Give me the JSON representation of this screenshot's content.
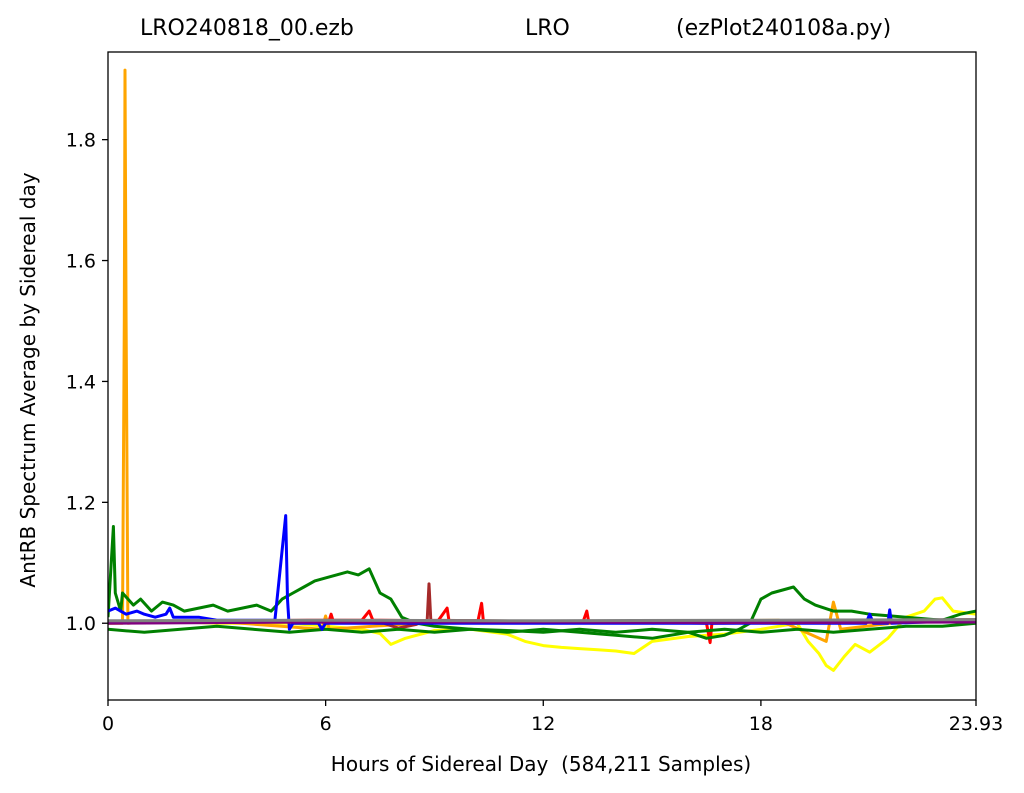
{
  "title": {
    "file": "LRO240818_00.ezb",
    "station": "LRO",
    "program": "(ezPlot240108a.py)"
  },
  "chart_data": {
    "type": "line",
    "title": "LRO240818_00.ezb LRO (ezPlot240108a.py)",
    "xlabel": "Hours of Sidereal Day  (584,211 Samples)",
    "ylabel": "AntRB Spectrum Average by Sidereal day",
    "xlim": [
      0,
      23.93
    ],
    "ylim": [
      0.873,
      1.945
    ],
    "xticks": [
      0,
      6,
      12,
      18,
      23.93
    ],
    "xtick_labels": [
      "0",
      "6",
      "12",
      "18",
      "23.93"
    ],
    "yticks": [
      1.0,
      1.2,
      1.4,
      1.6,
      1.8
    ],
    "ytick_labels": [
      "1.0",
      "1.2",
      "1.4",
      "1.6",
      "1.8"
    ],
    "grid": false,
    "series": [
      {
        "color": "#ffff00",
        "x": [
          0,
          1,
          2,
          3,
          4,
          5,
          6,
          7,
          7.5,
          7.8,
          8.2,
          9,
          10,
          11,
          11.5,
          12,
          12.5,
          13,
          13.5,
          14,
          14.5,
          15,
          16,
          17,
          18,
          19,
          19.3,
          19.6,
          19.8,
          20,
          20.3,
          20.6,
          21,
          21.5,
          22,
          22.5,
          22.8,
          23,
          23.3,
          23.93
        ],
        "y": [
          1.0,
          1.003,
          1.002,
          1.0,
          1.0,
          1.0,
          0.995,
          0.99,
          0.983,
          0.965,
          0.975,
          0.988,
          0.99,
          0.982,
          0.97,
          0.963,
          0.96,
          0.958,
          0.956,
          0.954,
          0.95,
          0.97,
          0.978,
          0.982,
          0.99,
          1.0,
          0.97,
          0.95,
          0.93,
          0.922,
          0.945,
          0.965,
          0.952,
          0.975,
          1.01,
          1.02,
          1.04,
          1.042,
          1.02,
          1.015
        ]
      },
      {
        "color": "#ffa500",
        "x": [
          0,
          0.4,
          0.45,
          0.47,
          0.5,
          0.55,
          1,
          3,
          5.9,
          6,
          6.1,
          9,
          12,
          15,
          17,
          18.5,
          19.8,
          20,
          20.2,
          22,
          23.93
        ],
        "y": [
          1.0,
          1.0,
          1.5,
          1.915,
          1.5,
          1.0,
          1.002,
          1.003,
          0.99,
          1.012,
          0.99,
          1.002,
          1.002,
          1.003,
          1.004,
          1.005,
          0.97,
          1.035,
          0.99,
          1.003,
          1.005
        ]
      },
      {
        "color": "#ff0000",
        "x": [
          0,
          2,
          5.5,
          6.1,
          6.15,
          6.2,
          7,
          7.2,
          7.3,
          9.1,
          9.35,
          9.4,
          10.2,
          10.3,
          10.35,
          13.1,
          13.2,
          13.25,
          16.5,
          16.6,
          16.65,
          20,
          23.93
        ],
        "y": [
          1.002,
          1.003,
          1.005,
          1.005,
          1.015,
          1.005,
          1.005,
          1.02,
          1.005,
          1.004,
          1.025,
          1.004,
          1.004,
          1.033,
          1.003,
          1.003,
          1.02,
          1.003,
          1.0,
          0.968,
          1.0,
          1.002,
          1.003
        ]
      },
      {
        "color": "#a52a2a",
        "x": [
          0,
          3,
          7.6,
          8,
          8.5,
          8.8,
          8.85,
          8.9,
          12,
          18,
          23.93
        ],
        "y": [
          1.003,
          1.004,
          1.0,
          0.992,
          0.998,
          1.005,
          1.065,
          1.005,
          1.003,
          1.004,
          1.006
        ]
      },
      {
        "color": "#008000",
        "x": [
          0,
          0.15,
          0.2,
          0.35,
          0.4,
          0.7,
          0.9,
          1.2,
          1.5,
          1.8,
          2.1,
          2.5,
          2.9,
          3.3,
          3.7,
          4.1,
          4.5,
          4.8,
          5.1,
          5.4,
          5.7,
          6.0,
          6.3,
          6.6,
          6.9,
          7.2,
          7.5,
          7.8,
          8.1,
          8.5,
          9,
          10,
          11,
          12,
          13,
          14,
          15,
          16,
          16.5,
          17,
          17.4,
          17.7,
          18,
          18.3,
          18.6,
          18.9,
          19.2,
          19.5,
          20,
          20.5,
          21,
          22,
          23,
          23.5,
          23.93
        ],
        "y": [
          1.01,
          1.16,
          1.05,
          1.02,
          1.05,
          1.03,
          1.04,
          1.02,
          1.035,
          1.03,
          1.02,
          1.025,
          1.03,
          1.02,
          1.025,
          1.03,
          1.02,
          1.04,
          1.05,
          1.06,
          1.07,
          1.075,
          1.08,
          1.085,
          1.08,
          1.09,
          1.05,
          1.04,
          1.01,
          1.0,
          0.995,
          0.99,
          0.985,
          0.99,
          0.985,
          0.98,
          0.975,
          0.985,
          0.975,
          0.98,
          0.99,
          1.0,
          1.04,
          1.05,
          1.055,
          1.06,
          1.04,
          1.03,
          1.02,
          1.02,
          1.015,
          1.01,
          1.005,
          1.015,
          1.02
        ]
      },
      {
        "color": "#008000",
        "x": [
          0,
          1,
          2,
          3,
          4,
          5,
          6,
          7,
          8,
          9,
          10,
          11,
          12,
          13,
          14,
          15,
          16,
          17,
          18,
          19,
          20,
          21,
          22,
          23,
          23.93
        ],
        "y": [
          0.99,
          0.985,
          0.99,
          0.995,
          0.99,
          0.985,
          0.99,
          0.985,
          0.99,
          0.985,
          0.99,
          0.988,
          0.985,
          0.99,
          0.985,
          0.99,
          0.985,
          0.99,
          0.985,
          0.99,
          0.985,
          0.99,
          0.995,
          0.995,
          1.0
        ]
      },
      {
        "color": "#0000ff",
        "x": [
          0,
          0.2,
          0.5,
          0.8,
          1.0,
          1.3,
          1.6,
          1.7,
          1.8,
          2.5,
          3.0,
          4.6,
          4.9,
          4.95,
          5.0,
          5.1,
          5.8,
          5.9,
          6.0,
          9,
          12,
          15,
          18,
          20.9,
          21.0,
          21.1,
          21.5,
          21.55,
          21.6,
          23.93
        ],
        "y": [
          1.02,
          1.025,
          1.015,
          1.02,
          1.015,
          1.01,
          1.015,
          1.025,
          1.01,
          1.01,
          1.005,
          1.005,
          1.178,
          1.04,
          0.99,
          1.0,
          1.0,
          0.99,
          1.0,
          1.0,
          1.0,
          1.0,
          1.0,
          1.0,
          1.015,
          1.0,
          1.0,
          1.022,
          1.0,
          1.005
        ]
      },
      {
        "color": "#800080",
        "x": [
          0,
          6,
          12,
          18,
          23.93
        ],
        "y": [
          1.0,
          1.002,
          1.002,
          1.001,
          1.002
        ]
      },
      {
        "color": "#808080",
        "x": [
          0,
          6,
          12,
          18,
          23.93
        ],
        "y": [
          1.004,
          1.005,
          1.004,
          1.005,
          1.006
        ]
      }
    ]
  }
}
